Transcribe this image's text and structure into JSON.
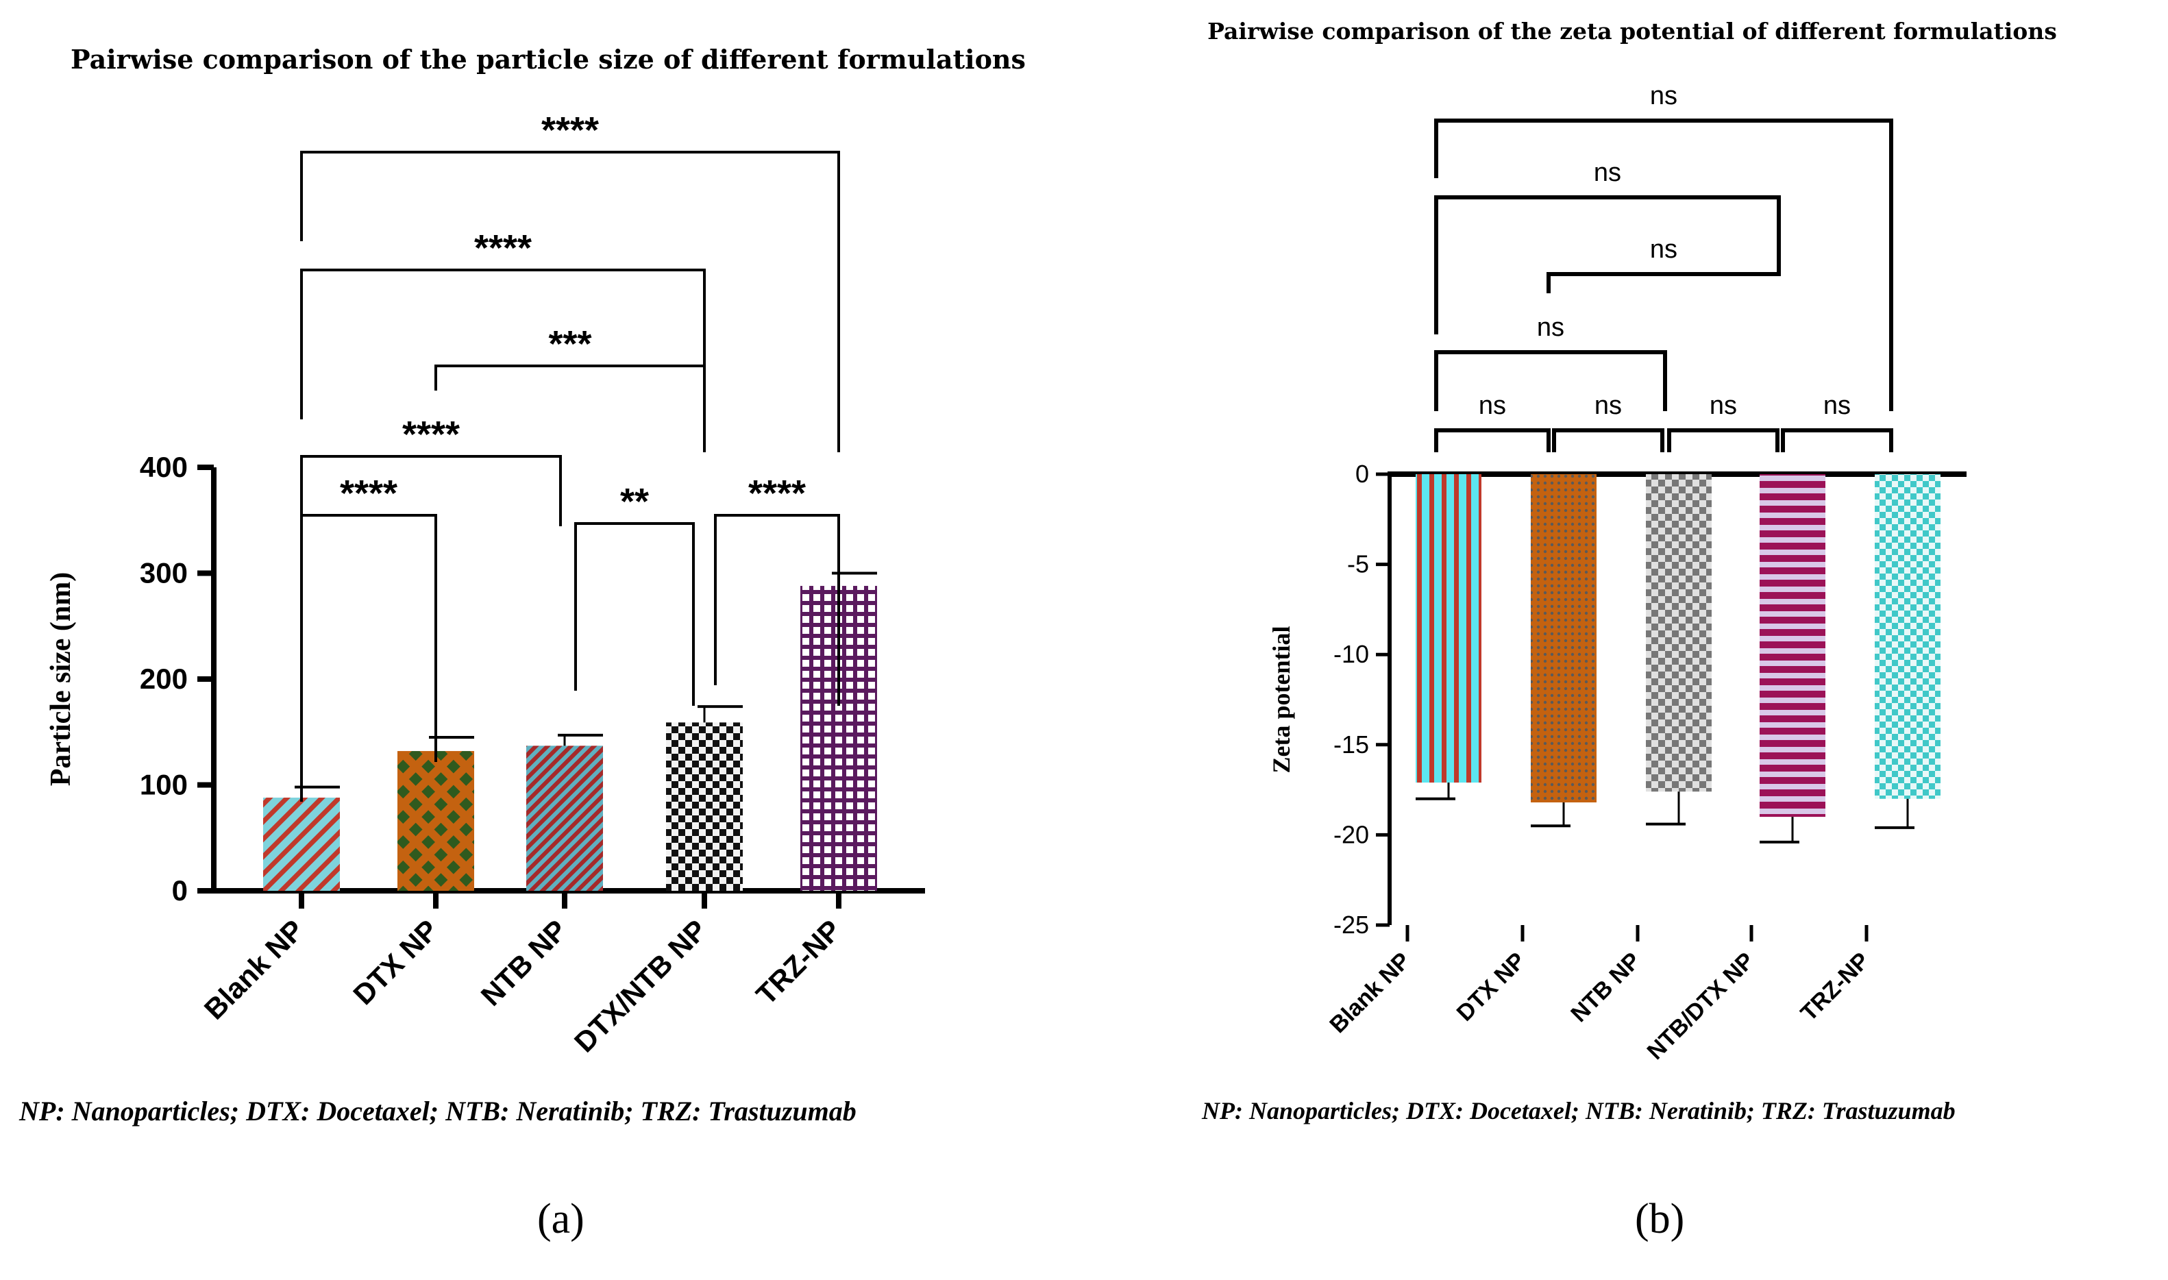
{
  "footnote": "NP: Nanoparticles; DTX: Docetaxel; NTB: Neratinib; TRZ: Trastuzumab",
  "chart_data": [
    {
      "type": "bar",
      "panel_label": "(a)",
      "title": "Pairwise comparison of the particle size of different formulations",
      "xlabel": "",
      "ylabel": "Particle size (nm)",
      "ylim": [
        0,
        400
      ],
      "yticks": [
        0,
        100,
        200,
        300,
        400
      ],
      "categories": [
        "Blank NP",
        "DTX NP",
        "NTB NP",
        "DTX/NTB NP",
        "TRZ-NP"
      ],
      "values": [
        88,
        132,
        137,
        159,
        288
      ],
      "errors": [
        10,
        13,
        10,
        15,
        12
      ],
      "colors": [
        "#7ed3dc",
        "#c46210",
        "#c0392b",
        "#111111",
        "#5a1a5e"
      ],
      "patterns": [
        "diag-stripe",
        "diamond-lattice",
        "diag-stripe-dense",
        "checker",
        "grid"
      ],
      "grid": false,
      "legend": "none",
      "comparisons": [
        {
          "from": 0,
          "to": 1,
          "label": "****"
        },
        {
          "from": 0,
          "to": 2,
          "label": "****"
        },
        {
          "from": 2,
          "to": 3,
          "label": "**"
        },
        {
          "from": 3,
          "to": 4,
          "label": "****"
        },
        {
          "from": 1,
          "to": 3,
          "label": "***"
        },
        {
          "from": 0,
          "to": 3,
          "label": "****"
        },
        {
          "from": 0,
          "to": 4,
          "label": "****"
        }
      ]
    },
    {
      "type": "bar",
      "panel_label": "(b)",
      "title": "Pairwise comparison of the zeta potential of different formulations",
      "xlabel": "",
      "ylabel": "Zeta potential",
      "ylim": [
        -25,
        0
      ],
      "yticks": [
        0,
        -5,
        -10,
        -15,
        -20,
        -25
      ],
      "categories": [
        "Blank NP",
        "DTX NP",
        "NTB NP",
        "NTB/DTX NP",
        "TRZ-NP"
      ],
      "values": [
        -17.1,
        -18.2,
        -17.6,
        -19.0,
        -18.0
      ],
      "errors": [
        0.9,
        1.3,
        1.8,
        1.4,
        1.6
      ],
      "colors": [
        "#5ce6f0",
        "#c46210",
        "#888888",
        "#9c1257",
        "#40c8c8"
      ],
      "patterns": [
        "vert-stripe",
        "fine-dots",
        "checker",
        "horiz-stripe",
        "checker"
      ],
      "grid": false,
      "legend": "none",
      "comparisons": [
        {
          "from": 0,
          "to": 1,
          "label": "ns"
        },
        {
          "from": 1,
          "to": 2,
          "label": "ns"
        },
        {
          "from": 2,
          "to": 3,
          "label": "ns"
        },
        {
          "from": 3,
          "to": 4,
          "label": "ns"
        },
        {
          "from": 0,
          "to": 2,
          "label": "ns"
        },
        {
          "from": 1,
          "to": 3,
          "label": "ns"
        },
        {
          "from": 0,
          "to": 3,
          "label": "ns"
        },
        {
          "from": 0,
          "to": 4,
          "label": "ns"
        }
      ]
    }
  ]
}
